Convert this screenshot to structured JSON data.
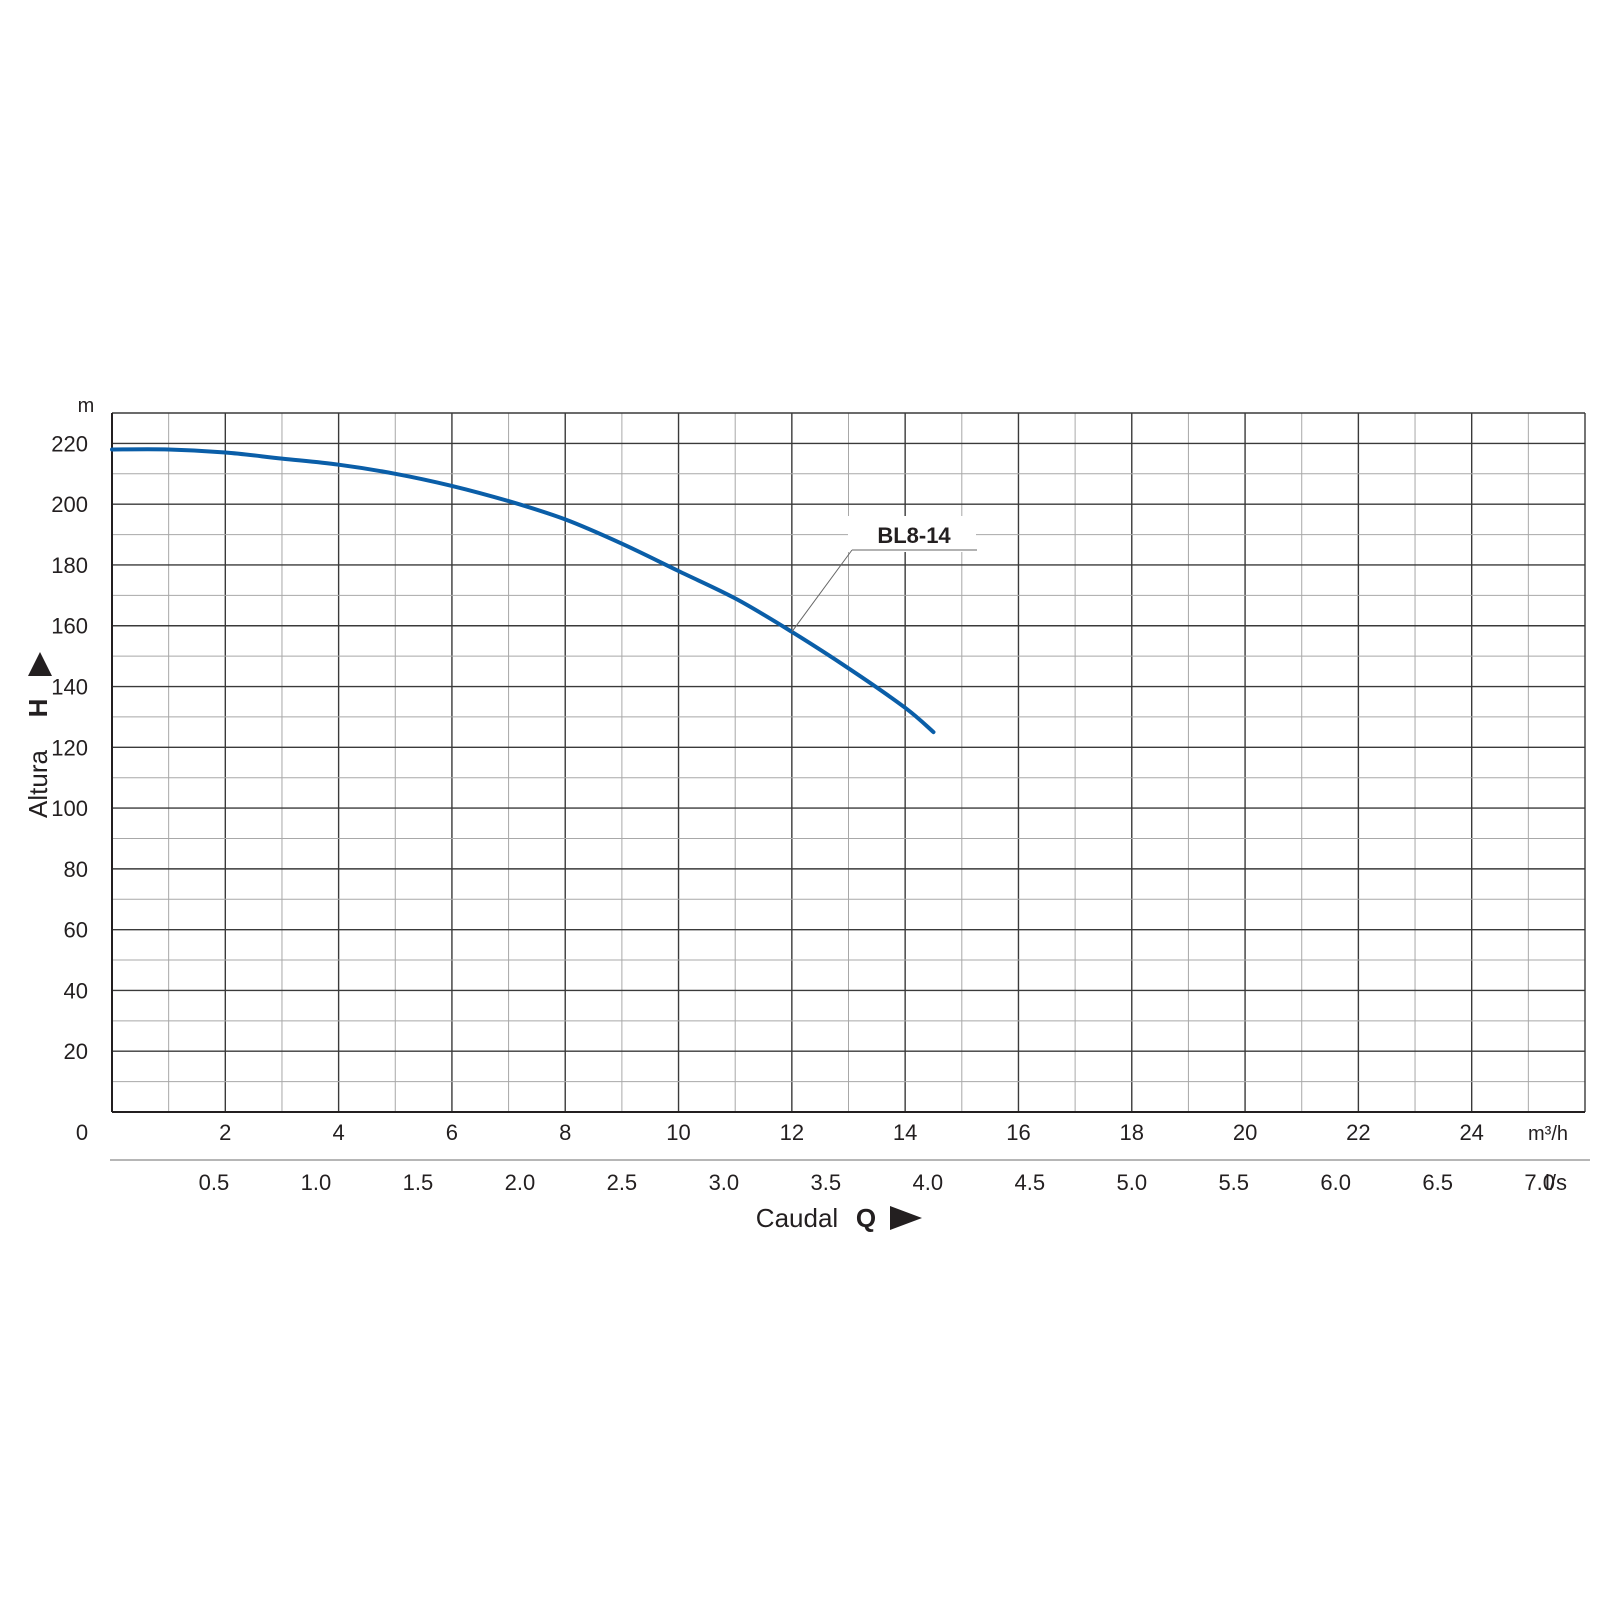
{
  "chart_data": {
    "type": "line",
    "x_axis": {
      "label": "Caudal",
      "symbol": "Q",
      "unit": "m³/h",
      "range": [
        0,
        26
      ],
      "ticks": [
        2,
        4,
        6,
        8,
        10,
        12,
        14,
        16,
        18,
        20,
        22,
        24
      ],
      "minor_step": 1
    },
    "x_axis_secondary": {
      "unit": "l/s",
      "ticks": [
        "0.5",
        "1.0",
        "1.5",
        "2.0",
        "2.5",
        "3.0",
        "3.5",
        "4.0",
        "4.5",
        "5.0",
        "5.5",
        "6.0",
        "6.5",
        "7.0"
      ]
    },
    "y_axis": {
      "label": "Altura",
      "symbol": "H",
      "unit": "m",
      "range": [
        0,
        230
      ],
      "ticks": [
        20,
        40,
        60,
        80,
        100,
        120,
        140,
        160,
        180,
        200,
        220
      ],
      "minor_step": 10
    },
    "origin_label": "0",
    "grid": true,
    "series": [
      {
        "name": "BL8-14",
        "color": "#0a5ea8",
        "x": [
          0,
          1,
          2,
          3,
          4,
          5,
          6,
          7,
          8,
          9,
          10,
          11,
          12,
          13,
          14,
          14.5
        ],
        "y": [
          218,
          218,
          217,
          215,
          213,
          210,
          206,
          201,
          195,
          187,
          178,
          169,
          158,
          146,
          133,
          125
        ]
      }
    ]
  }
}
